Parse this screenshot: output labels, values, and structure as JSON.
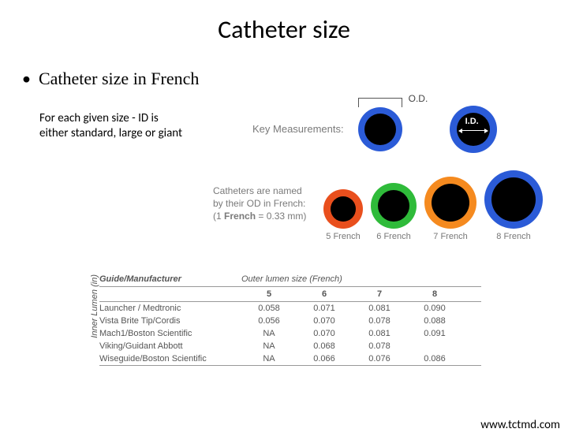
{
  "title": "Catheter size",
  "bullet": "Catheter size in French",
  "subnote_l1": "For each given size - ID is",
  "subnote_l2": "either standard, large or giant",
  "keymeas": {
    "label": "Key Measurements:",
    "od_label": "O.D.",
    "id_label": "I.D.",
    "od_circle": {
      "outer": 56,
      "ring": "#2b5bd7",
      "ring_w": 8
    },
    "id_circle": {
      "outer": 60,
      "ring": "#2b5bd7",
      "ring_w": 9
    }
  },
  "french": {
    "text_l1": "Catheters are named",
    "text_l2": "by their OD in French:",
    "text_l3": "(1 French = 0.33 mm)",
    "items": [
      {
        "label": "5 French",
        "outer": 50,
        "ring_w": 9,
        "ring_color": "#e94f1d"
      },
      {
        "label": "6 French",
        "outer": 58,
        "ring_w": 9,
        "ring_color": "#2fbb3a"
      },
      {
        "label": "7 French",
        "outer": 66,
        "ring_w": 9,
        "ring_color": "#f58a1f"
      },
      {
        "label": "8 French",
        "outer": 74,
        "ring_w": 9,
        "ring_color": "#2b5bd7"
      }
    ]
  },
  "table": {
    "yaxis": "Inner Lumen (in)",
    "guide_header": "Guide/Manufacturer",
    "outer_header": "Outer lumen size (French)",
    "sizes": [
      "5",
      "6",
      "7",
      "8"
    ],
    "rows": [
      {
        "name": "Launcher / Medtronic",
        "vals": [
          "0.058",
          "0.071",
          "0.081",
          "0.090"
        ]
      },
      {
        "name": "Vista Brite Tip/Cordis",
        "vals": [
          "0.056",
          "0.070",
          "0.078",
          "0.088"
        ]
      },
      {
        "name": "Mach1/Boston Scientific",
        "vals": [
          "NA",
          "0.070",
          "0.081",
          "0.091"
        ]
      },
      {
        "name": "Viking/Guidant Abbott",
        "vals": [
          "NA",
          "0.068",
          "0.078",
          ""
        ]
      },
      {
        "name": "Wiseguide/Boston Scientific",
        "vals": [
          "NA",
          "0.066",
          "0.076",
          "0.086"
        ]
      }
    ]
  },
  "footer": "www.tctmd.com"
}
